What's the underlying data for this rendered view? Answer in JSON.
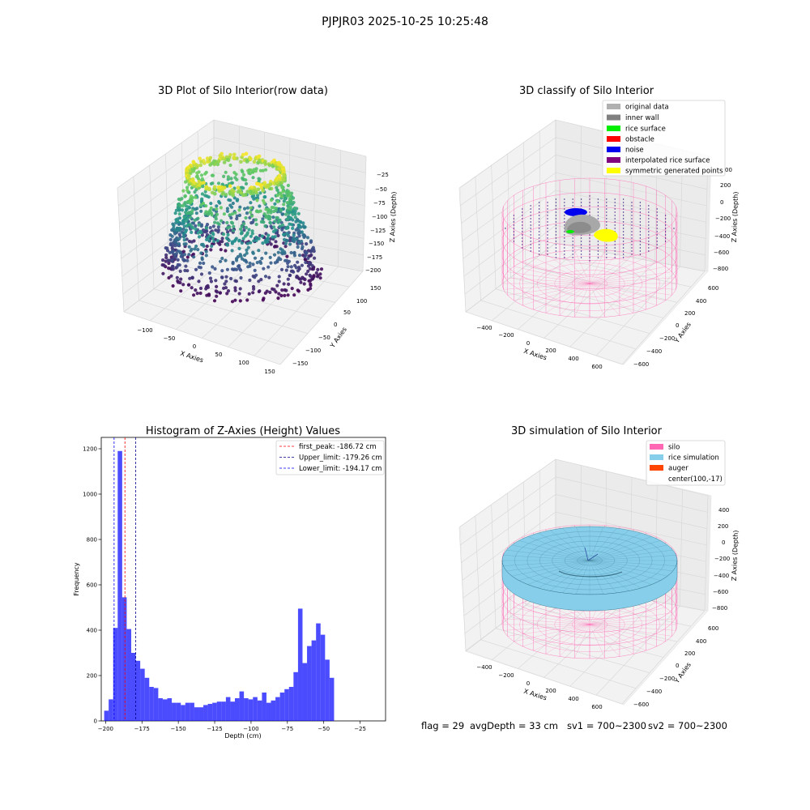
{
  "figure": {
    "title": "PJPJR03 2025-10-25 10:25:48"
  },
  "panel_raw": {
    "title": "3D Plot of Silo Interior(row data)",
    "xlabel": "X Axies",
    "ylabel": "Y Axies",
    "zlabel": "Z Axies (Depth)",
    "xticks": [
      "−100",
      "−50",
      "0",
      "50",
      "100",
      "150"
    ],
    "yticks": [
      "150",
      "100",
      "50",
      "0",
      "−50",
      "−100",
      "−150"
    ],
    "zticks": [
      "−25",
      "−50",
      "−75",
      "−100",
      "−125",
      "−150",
      "−175",
      "−200"
    ],
    "colormap": [
      "#440154",
      "#3b528b",
      "#21918c",
      "#5ec962",
      "#fde725"
    ]
  },
  "panel_classify": {
    "title": "3D classify of Silo Interior",
    "xlabel": "X Axies",
    "ylabel": "Y Axies",
    "zlabel": "Z Axies (Depth)",
    "xticks": [
      "−400",
      "−200",
      "0",
      "200",
      "400",
      "600"
    ],
    "yticks": [
      "600",
      "400",
      "200",
      "0",
      "−200",
      "−400",
      "−600"
    ],
    "zticks": [
      "200",
      "0",
      "−200",
      "−400",
      "−600",
      "−800"
    ],
    "zticks_top": "00",
    "legend": [
      {
        "label": "original data",
        "color": "#b0b0b0"
      },
      {
        "label": "inner wall",
        "color": "#808080"
      },
      {
        "label": "rice surface",
        "color": "#00ee00"
      },
      {
        "label": "obstacle",
        "color": "#ff0000"
      },
      {
        "label": "noise",
        "color": "#0000ee"
      },
      {
        "label": "interpolated rice surface",
        "color": "#800080"
      },
      {
        "label": "symmetric generated points",
        "color": "#ffff00"
      }
    ]
  },
  "panel_sim": {
    "title": "3D simulation of Silo Interior",
    "xlabel": "X Axies",
    "ylabel": "Y Axies",
    "zlabel": "Z Axies (Depth)",
    "xticks": [
      "−400",
      "−200",
      "0",
      "200",
      "400",
      "600"
    ],
    "yticks": [
      "600",
      "400",
      "200",
      "0",
      "−200",
      "−400",
      "−600"
    ],
    "zticks": [
      "400",
      "200",
      "0",
      "−200",
      "−400",
      "−600",
      "−800"
    ],
    "legend": [
      {
        "label": "silo",
        "color": "#ff69b4"
      },
      {
        "label": "rice simulation",
        "color": "#87ceeb"
      },
      {
        "label": "auger",
        "color": "#ff4500"
      },
      {
        "label": "center(100,-17)",
        "color": ""
      }
    ]
  },
  "footer": {
    "flag": "flag = 29",
    "avg_depth": "avgDepth = 33 cm",
    "sv1": "sv1 = 700~2300",
    "sv2": "sv2 = 700~2300"
  },
  "chart_data": {
    "type": "bar",
    "title": "Histogram of Z-Axies (Height) Values",
    "xlabel": "Depth (cm)",
    "ylabel": "Frequency",
    "xlim": [
      -203,
      -7.5
    ],
    "ylim": [
      0,
      1250
    ],
    "xticks": [
      -200,
      -175,
      -150,
      -125,
      -100,
      -75,
      -50,
      -25
    ],
    "xtick_labels": [
      "−200",
      "−175",
      "−150",
      "−125",
      "−100",
      "−75",
      "−50",
      "−25"
    ],
    "yticks": [
      0,
      200,
      400,
      600,
      800,
      1000,
      1200
    ],
    "yticks_labels": [
      "0",
      "200",
      "400",
      "600",
      "800",
      "1000",
      "1200"
    ],
    "bin_start": -201,
    "bin_width": 3.1,
    "values": [
      45,
      95,
      410,
      1190,
      545,
      405,
      300,
      265,
      230,
      190,
      150,
      145,
      100,
      95,
      100,
      80,
      80,
      70,
      80,
      80,
      60,
      60,
      70,
      75,
      80,
      85,
      85,
      105,
      85,
      100,
      130,
      100,
      95,
      105,
      90,
      125,
      80,
      90,
      105,
      125,
      140,
      150,
      215,
      495,
      255,
      330,
      355,
      430,
      380,
      270,
      190
    ],
    "bar_color": "#0000ff",
    "bar_opacity": 0.7,
    "lines": [
      {
        "name": "first_peak: -186.72 cm",
        "x": -186.72,
        "color": "#ff0000"
      },
      {
        "name": "Upper_limit: -179.26 cm",
        "x": -179.26,
        "color": "#00008b"
      },
      {
        "name": "Lower_limit: -194.17 cm",
        "x": -194.17,
        "color": "#0000ff"
      }
    ],
    "legend_position": "upper-right"
  }
}
